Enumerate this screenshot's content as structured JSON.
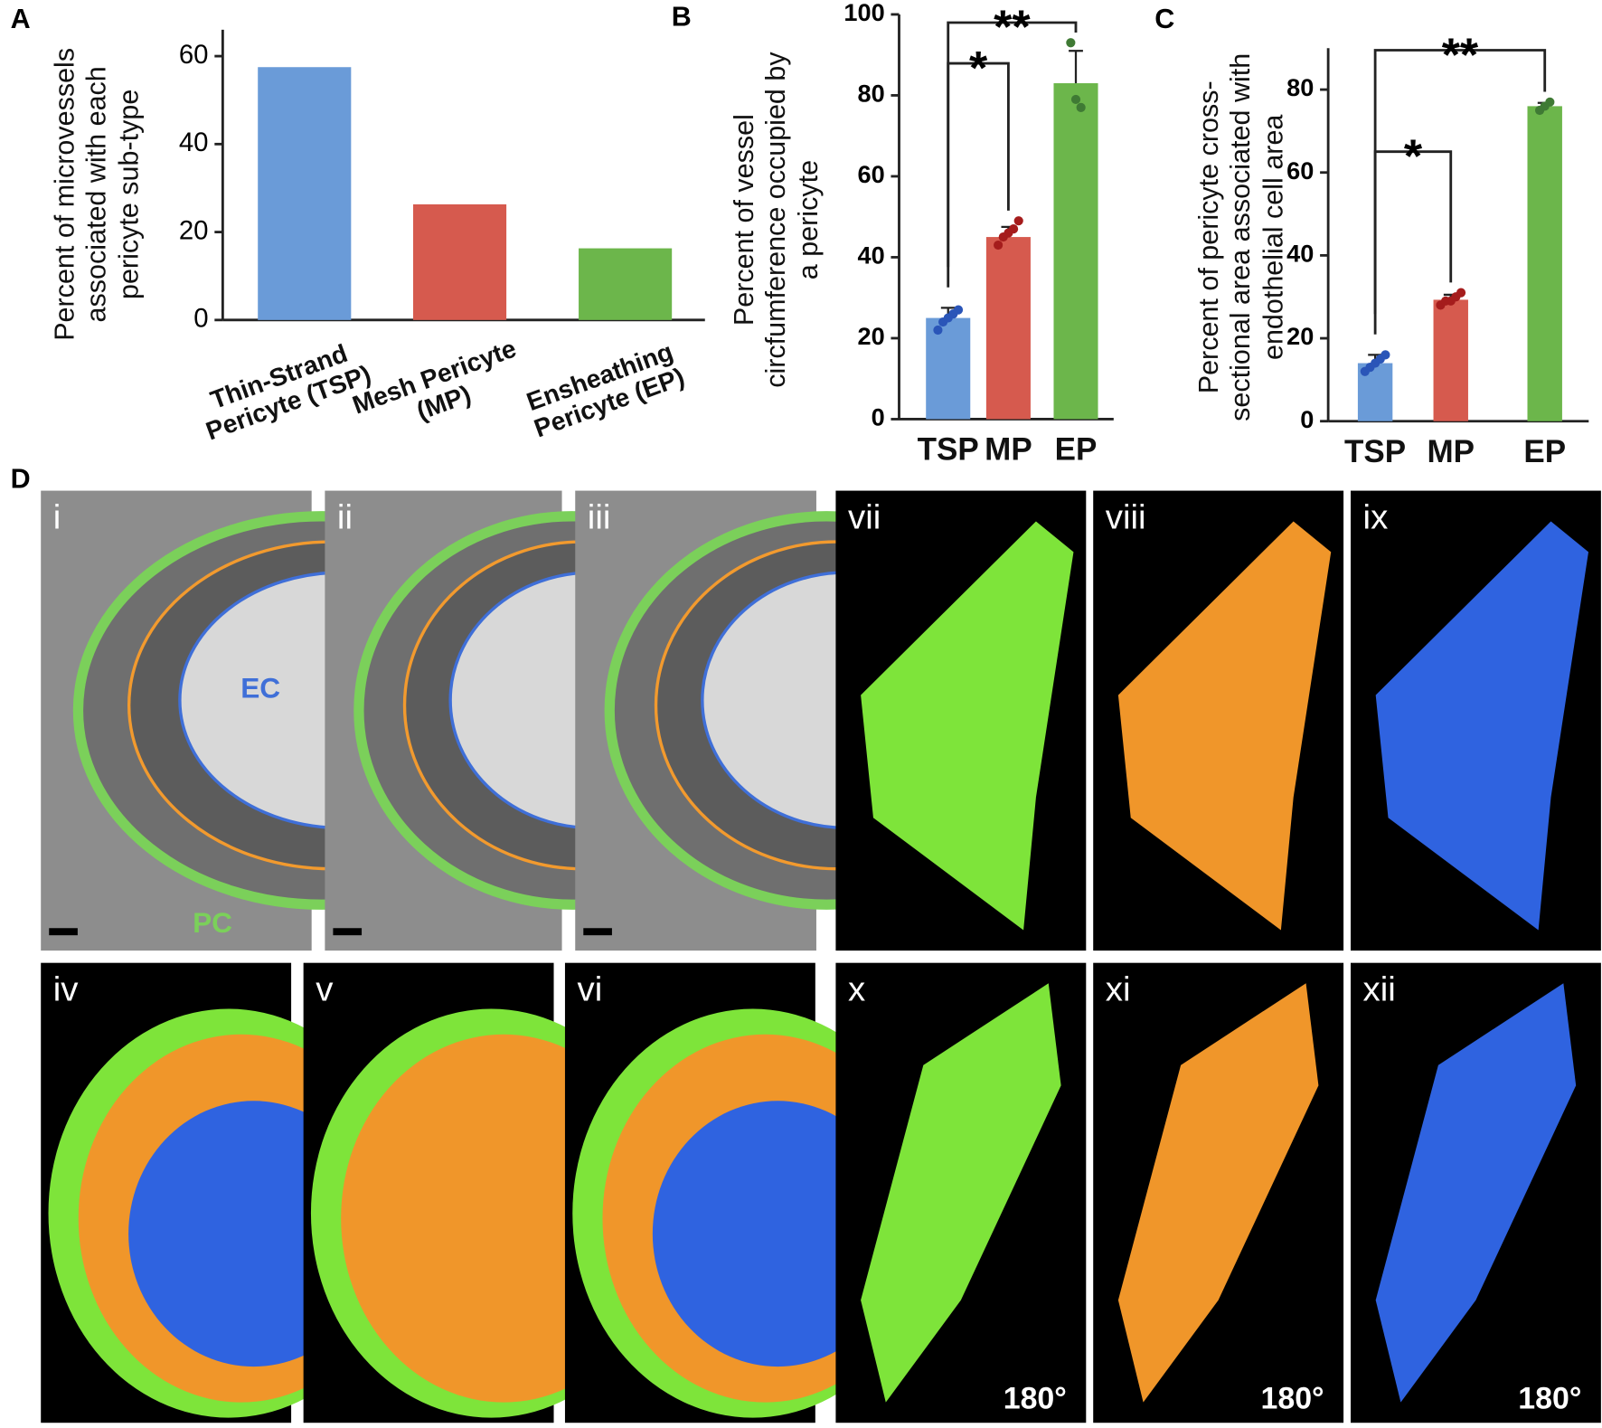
{
  "chart_data": [
    {
      "type": "bar",
      "panel": "A",
      "y_label": "Percent of microvessels associated with each pericyte sub-type",
      "categories": [
        "Thin-Strand Pericyte (TSP)",
        "Mesh Pericyte (MP)",
        "Ensheathing Pericyte (EP)"
      ],
      "values": [
        57.5,
        26.3,
        16.3
      ],
      "colors": [
        "#6a9bd8",
        "#d65a4e",
        "#6cb64b"
      ],
      "ylim": [
        0,
        66
      ],
      "yticks": [
        0,
        20,
        40,
        60
      ],
      "grid": false
    },
    {
      "type": "bar",
      "panel": "B",
      "y_label": "Percent of vessel circfumference occupied by a pericyte",
      "categories": [
        "TSP",
        "MP",
        "EP"
      ],
      "values": [
        25,
        45,
        83
      ],
      "errors": [
        2.5,
        2.5,
        8
      ],
      "points": [
        [
          22,
          24,
          25,
          26,
          27
        ],
        [
          43,
          45,
          46,
          47,
          49
        ],
        [
          93,
          79,
          77
        ]
      ],
      "point_colors": [
        "#2a55b8",
        "#a51c1c",
        "#3f7a34"
      ],
      "colors": [
        "#6a9bd8",
        "#d65a4e",
        "#6cb64b"
      ],
      "annotations": [
        {
          "label": "*",
          "from": 0,
          "to": 1
        },
        {
          "label": "**",
          "from": 0,
          "to": 2
        }
      ],
      "ylim": [
        0,
        100
      ],
      "yticks": [
        0,
        20,
        40,
        60,
        80,
        100
      ],
      "grid": false
    },
    {
      "type": "bar",
      "panel": "C",
      "y_label": "Percent of pericyte cross-sectional area associated with endothelial cell area",
      "categories": [
        "TSP",
        "MP",
        "EP"
      ],
      "values": [
        14,
        29.3,
        76
      ],
      "errors": [
        2,
        1.2,
        0.8
      ],
      "points": [
        [
          12,
          13,
          14,
          15,
          16
        ],
        [
          28,
          29,
          29,
          30,
          31
        ],
        [
          75,
          76,
          77
        ]
      ],
      "point_colors": [
        "#2a55b8",
        "#a51c1c",
        "#3f7a34"
      ],
      "colors": [
        "#6a9bd8",
        "#d65a4e",
        "#6cb64b"
      ],
      "annotations": [
        {
          "label": "*",
          "from": 0,
          "to": 1
        },
        {
          "label": "**",
          "from": 0,
          "to": 2
        }
      ],
      "ylim": [
        0,
        90
      ],
      "yticks": [
        0,
        20,
        40,
        60,
        80
      ],
      "grid": false
    }
  ],
  "panel_d": {
    "label": "D",
    "panels": [
      "i",
      "ii",
      "iii",
      "vii",
      "viii",
      "ix",
      "iv",
      "v",
      "vi",
      "x",
      "xi",
      "xii"
    ],
    "ec_label": "EC",
    "pc_label": "PC",
    "rotation_label": "180°"
  }
}
